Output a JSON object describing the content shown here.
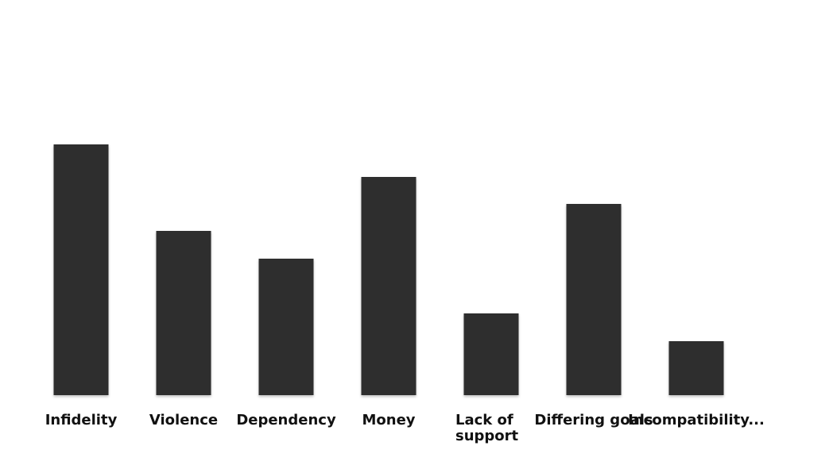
{
  "chart_data": {
    "type": "bar",
    "categories": [
      "Infidelity",
      "Violence",
      "Dependency",
      "Money",
      "Lack of support",
      "Differing goals",
      "Incompatibility..."
    ],
    "values": [
      316,
      207,
      172,
      275,
      103,
      241,
      68
    ],
    "color": "#2e2e2e",
    "ylim": [
      0,
      400
    ]
  }
}
